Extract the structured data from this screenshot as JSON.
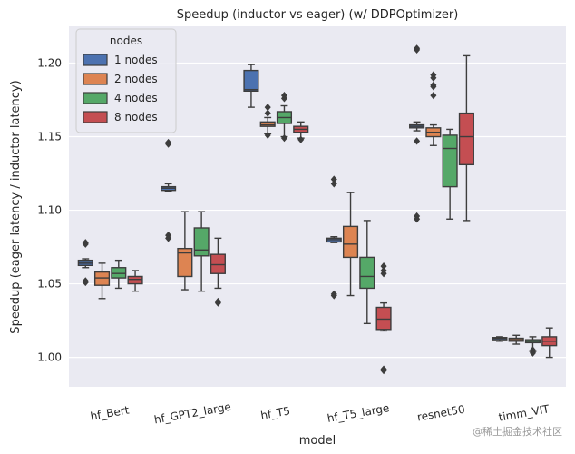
{
  "chart_data": {
    "type": "boxplot",
    "title": "Speedup (inductor vs eager) (w/ DDPOptimizer)",
    "xlabel": "model",
    "ylabel": "Speedup (eager latency / inductor latency)",
    "ylim": [
      0.98,
      1.225
    ],
    "yticks": [
      1.0,
      1.05,
      1.1,
      1.15,
      1.2
    ],
    "ytick_labels": [
      "1.00",
      "1.05",
      "1.10",
      "1.15",
      "1.20"
    ],
    "grid": true,
    "legend": {
      "title": "nodes",
      "placement": "top-left"
    },
    "categories": [
      "hf_Bert",
      "hf_GPT2_large",
      "hf_T5",
      "hf_T5_large",
      "resnet50",
      "timm_VIT"
    ],
    "series": [
      {
        "name": "1 nodes",
        "color": "#4c72b0",
        "boxes": [
          {
            "whislo": 1.061,
            "q1": 1.0625,
            "med": 1.064,
            "q3": 1.066,
            "whishi": 1.067,
            "fliers": [
              1.078,
              1.077,
              1.052,
              1.051
            ]
          },
          {
            "whislo": 1.113,
            "q1": 1.1135,
            "med": 1.115,
            "q3": 1.116,
            "whishi": 1.118,
            "fliers": [
              1.146,
              1.145,
              1.083,
              1.081
            ]
          },
          {
            "whislo": 1.17,
            "q1": 1.181,
            "med": 1.182,
            "q3": 1.195,
            "whishi": 1.199,
            "fliers": []
          },
          {
            "whislo": 1.078,
            "q1": 1.0785,
            "med": 1.08,
            "q3": 1.081,
            "whishi": 1.082,
            "fliers": [
              1.121,
              1.118,
              1.043,
              1.042
            ]
          },
          {
            "whislo": 1.154,
            "q1": 1.156,
            "med": 1.157,
            "q3": 1.158,
            "whishi": 1.16,
            "fliers": [
              1.21,
              1.209,
              1.096,
              1.094,
              1.147
            ]
          },
          {
            "whislo": 1.011,
            "q1": 1.012,
            "med": 1.013,
            "q3": 1.0135,
            "whishi": 1.014,
            "fliers": []
          }
        ]
      },
      {
        "name": "2 nodes",
        "color": "#dd8452",
        "boxes": [
          {
            "whislo": 1.04,
            "q1": 1.049,
            "med": 1.054,
            "q3": 1.058,
            "whishi": 1.064,
            "fliers": []
          },
          {
            "whislo": 1.046,
            "q1": 1.055,
            "med": 1.071,
            "q3": 1.074,
            "whishi": 1.099,
            "fliers": []
          },
          {
            "whislo": 1.152,
            "q1": 1.157,
            "med": 1.158,
            "q3": 1.16,
            "whishi": 1.163,
            "fliers": [
              1.17,
              1.166,
              1.151
            ]
          },
          {
            "whislo": 1.042,
            "q1": 1.068,
            "med": 1.077,
            "q3": 1.089,
            "whishi": 1.112,
            "fliers": []
          },
          {
            "whislo": 1.144,
            "q1": 1.15,
            "med": 1.153,
            "q3": 1.156,
            "whishi": 1.158,
            "fliers": [
              1.192,
              1.19,
              1.185,
              1.184,
              1.178
            ]
          },
          {
            "whislo": 1.009,
            "q1": 1.011,
            "med": 1.012,
            "q3": 1.013,
            "whishi": 1.015,
            "fliers": []
          }
        ]
      },
      {
        "name": "4 nodes",
        "color": "#55a868",
        "boxes": [
          {
            "whislo": 1.047,
            "q1": 1.054,
            "med": 1.057,
            "q3": 1.061,
            "whishi": 1.066,
            "fliers": []
          },
          {
            "whislo": 1.045,
            "q1": 1.069,
            "med": 1.073,
            "q3": 1.088,
            "whishi": 1.099,
            "fliers": []
          },
          {
            "whislo": 1.15,
            "q1": 1.159,
            "med": 1.163,
            "q3": 1.167,
            "whishi": 1.171,
            "fliers": [
              1.178,
              1.176,
              1.149
            ]
          },
          {
            "whislo": 1.023,
            "q1": 1.047,
            "med": 1.055,
            "q3": 1.068,
            "whishi": 1.093,
            "fliers": []
          },
          {
            "whislo": 1.094,
            "q1": 1.116,
            "med": 1.142,
            "q3": 1.151,
            "whishi": 1.155,
            "fliers": []
          },
          {
            "whislo": 1.004,
            "q1": 1.01,
            "med": 1.011,
            "q3": 1.012,
            "whishi": 1.014,
            "fliers": [
              1.005,
              1.003
            ]
          }
        ]
      },
      {
        "name": "8 nodes",
        "color": "#c44e52",
        "boxes": [
          {
            "whislo": 1.045,
            "q1": 1.05,
            "med": 1.053,
            "q3": 1.055,
            "whishi": 1.059,
            "fliers": []
          },
          {
            "whislo": 1.047,
            "q1": 1.057,
            "med": 1.063,
            "q3": 1.07,
            "whishi": 1.081,
            "fliers": [
              1.038,
              1.037
            ]
          },
          {
            "whislo": 1.149,
            "q1": 1.153,
            "med": 1.155,
            "q3": 1.157,
            "whishi": 1.16,
            "fliers": [
              1.148
            ]
          },
          {
            "whislo": 1.018,
            "q1": 1.019,
            "med": 1.026,
            "q3": 1.034,
            "whishi": 1.037,
            "fliers": [
              1.062,
              1.059,
              1.057,
              0.992,
              0.991
            ]
          },
          {
            "whislo": 1.093,
            "q1": 1.131,
            "med": 1.15,
            "q3": 1.166,
            "whishi": 1.205,
            "fliers": []
          },
          {
            "whislo": 1.0,
            "q1": 1.008,
            "med": 1.011,
            "q3": 1.014,
            "whishi": 1.02,
            "fliers": []
          }
        ]
      }
    ]
  },
  "watermark": "@稀土掘金技术社区"
}
